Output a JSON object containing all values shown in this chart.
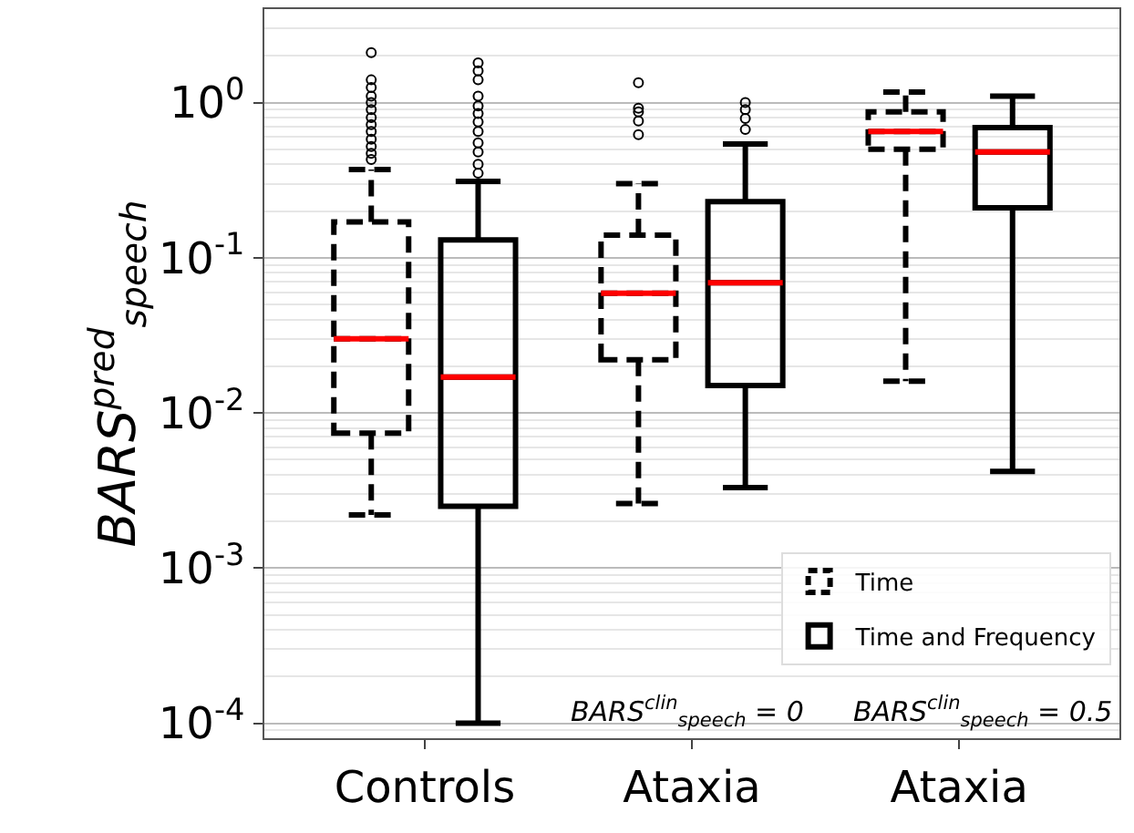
{
  "chart_data": {
    "type": "box",
    "ylabel": "BARS$^{pred}$$_{speech}$",
    "categories": [
      "Controls",
      "Ataxia",
      "Ataxia"
    ],
    "log": true,
    "grid": "y",
    "legend": "bottom right",
    "ylim": [
      8e-05,
      4
    ],
    "yticks": [
      {
        "value": 0.0001,
        "label": "10$^{-4}$"
      },
      {
        "value": 0.001,
        "label": "10$^{-3}$"
      },
      {
        "value": 0.01,
        "label": "10$^{-2}$"
      },
      {
        "value": 0.1,
        "label": "10$^{-1}$"
      },
      {
        "value": 1,
        "label": "10$^{0}$"
      }
    ],
    "series": [
      {
        "name": "Time",
        "color": "#000000",
        "line_style": "dashed",
        "boxes": [
          {
            "low": 0.0022,
            "q1": 0.0074,
            "median": 0.03,
            "q3": 0.17,
            "high": 0.37,
            "outliers": [
              2.1,
              1.4,
              1.25,
              1.1,
              1.0,
              0.9,
              0.8,
              0.72,
              0.65,
              0.58,
              0.52,
              0.47,
              0.43
            ]
          },
          {
            "low": 0.0026,
            "q1": 0.022,
            "median": 0.059,
            "q3": 0.14,
            "high": 0.3,
            "outliers": [
              1.34,
              0.92,
              0.87,
              0.76,
              0.62
            ]
          },
          {
            "low": 0.016,
            "q1": 0.5,
            "median": 0.65,
            "q3": 0.87,
            "high": 1.17
          }
        ]
      },
      {
        "name": "Time and Frequency",
        "color": "#000000",
        "line_style": "solid",
        "boxes": [
          {
            "low": 0.0001,
            "q1": 0.0025,
            "median": 0.017,
            "q3": 0.13,
            "high": 0.31,
            "outliers": [
              1.8,
              1.6,
              1.4,
              1.1,
              0.95,
              0.85,
              0.75,
              0.65,
              0.55,
              0.48,
              0.4,
              0.35
            ]
          },
          {
            "low": 0.0033,
            "q1": 0.015,
            "median": 0.069,
            "q3": 0.23,
            "high": 0.54,
            "outliers": [
              1.0,
              0.9,
              0.79,
              0.67
            ]
          },
          {
            "low": 0.0042,
            "q1": 0.21,
            "median": 0.48,
            "q3": 0.69,
            "high": 1.1
          }
        ]
      }
    ],
    "annotations": [
      "BARS$^{clin}$$_{speech}$ = 0",
      "BARS$^{clin}$$_{speech}$ = 0.5"
    ]
  }
}
